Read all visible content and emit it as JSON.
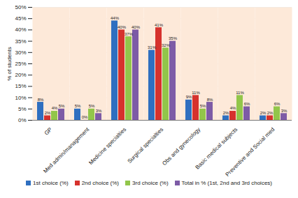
{
  "chart_data": {
    "type": "bar",
    "y_label": "% of students",
    "categories": [
      "GP",
      "Med admin/management",
      "Medicine specialties",
      "Surgical specialties",
      "Obs and gynecology",
      "Basic medical subjects",
      "Preventive and Social med"
    ],
    "series": [
      {
        "name": "1st choice (%)",
        "color": "#2f6fc0",
        "values": [
          8,
          5,
          44,
          31,
          9,
          2,
          2
        ],
        "value_labels": [
          "8%",
          "5%",
          "44%",
          "31%",
          "9%",
          "2%",
          "2%"
        ]
      },
      {
        "name": "2nd choice (%)",
        "color": "#d6322d",
        "values": [
          2,
          0,
          40,
          41,
          11,
          4,
          2
        ],
        "value_labels": [
          "2%",
          "0%",
          "40%",
          "41%",
          "11%",
          "4%",
          "2%"
        ]
      },
      {
        "name": "3rd choice (%)",
        "color": "#92c64a",
        "values": [
          4,
          5,
          37,
          32,
          5,
          11,
          6
        ],
        "value_labels": [
          "4%",
          "5%",
          "37%",
          "32%",
          "5%",
          "11%",
          "6%"
        ]
      },
      {
        "name": "Total in % (1st, 2nd and 3rd choices)",
        "color": "#7d5ba6",
        "values": [
          5,
          3,
          40,
          35,
          8,
          6,
          3
        ],
        "value_labels": [
          "5%",
          "3%",
          "40%",
          "35%",
          "8%",
          "6%",
          "3%"
        ]
      }
    ],
    "ylim": [
      0,
      50
    ],
    "yticks": [
      {
        "value": 0,
        "label": "0%"
      },
      {
        "value": 5,
        "label": "5%"
      },
      {
        "value": 10,
        "label": "10%"
      },
      {
        "value": 15,
        "label": "15%"
      },
      {
        "value": 20,
        "label": "20%"
      },
      {
        "value": 25,
        "label": "25%"
      },
      {
        "value": 30,
        "label": "30%"
      },
      {
        "value": 35,
        "label": "35%"
      },
      {
        "value": 40,
        "label": "40%"
      },
      {
        "value": 45,
        "label": "45%"
      },
      {
        "value": 50,
        "label": "50%"
      }
    ],
    "grid": true,
    "data_labels": true,
    "legend": "bottom"
  }
}
